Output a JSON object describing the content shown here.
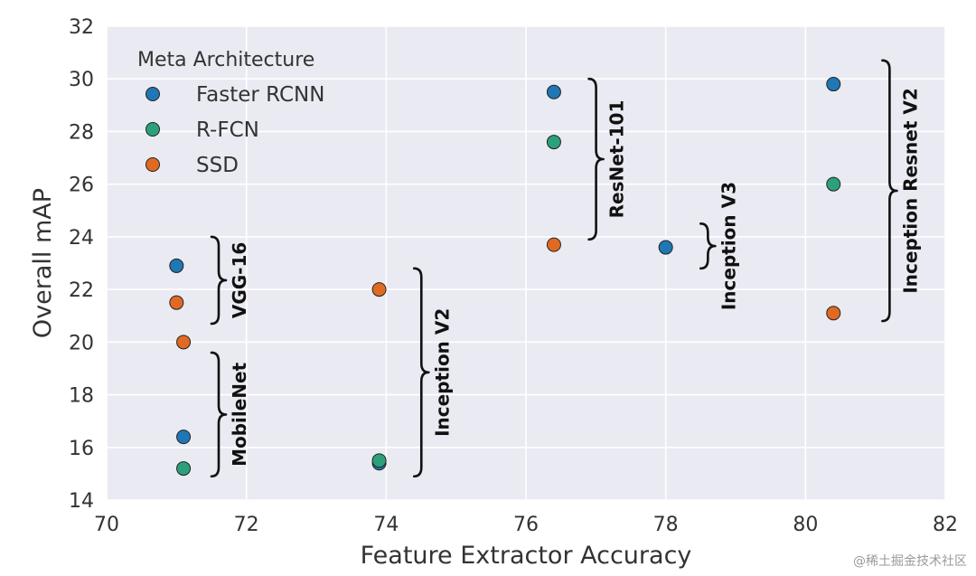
{
  "chart_data": {
    "type": "scatter",
    "xlabel": "Feature Extractor Accuracy",
    "ylabel": "Overall mAP",
    "xlim": [
      70,
      82
    ],
    "ylim": [
      14,
      32
    ],
    "xticks": [
      70,
      72,
      74,
      76,
      78,
      80,
      82
    ],
    "yticks": [
      14,
      16,
      18,
      20,
      22,
      24,
      26,
      28,
      30,
      32
    ],
    "grid": true,
    "legend": {
      "title": "Meta Architecture",
      "placement": "top-left",
      "entries": [
        "Faster RCNN",
        "R-FCN",
        "SSD"
      ]
    },
    "series": [
      {
        "name": "Faster RCNN",
        "color": "#1f77b4",
        "points": [
          [
            71.0,
            22.9
          ],
          [
            71.1,
            16.4
          ],
          [
            73.9,
            15.4
          ],
          [
            76.4,
            29.5
          ],
          [
            78.0,
            23.6
          ],
          [
            80.4,
            29.8
          ]
        ]
      },
      {
        "name": "R-FCN",
        "color": "#2ca07a",
        "points": [
          [
            71.1,
            15.2
          ],
          [
            73.9,
            15.5
          ],
          [
            76.4,
            27.6
          ],
          [
            80.4,
            26.0
          ]
        ]
      },
      {
        "name": "SSD",
        "color": "#e06a22",
        "points": [
          [
            71.0,
            21.5
          ],
          [
            71.1,
            20.0
          ],
          [
            73.9,
            22.0
          ],
          [
            76.4,
            23.7
          ],
          [
            80.4,
            21.1
          ]
        ]
      }
    ],
    "annotations": [
      {
        "text": "VGG-16",
        "x": 71.5,
        "y_range": [
          20.7,
          24.0
        ]
      },
      {
        "text": "MobileNet",
        "x": 71.5,
        "y_range": [
          14.9,
          19.6
        ]
      },
      {
        "text": "Inception V2",
        "x": 74.4,
        "y_range": [
          14.9,
          22.8
        ]
      },
      {
        "text": "ResNet-101",
        "x": 76.9,
        "y_range": [
          23.9,
          30.0
        ]
      },
      {
        "text": "Inception V3",
        "x": 78.5,
        "y_range": [
          22.8,
          24.5
        ]
      },
      {
        "text": "Inception Resnet V2",
        "x": 81.1,
        "y_range": [
          20.8,
          30.7
        ]
      }
    ]
  },
  "watermark": "@稀土掘金技术社区"
}
